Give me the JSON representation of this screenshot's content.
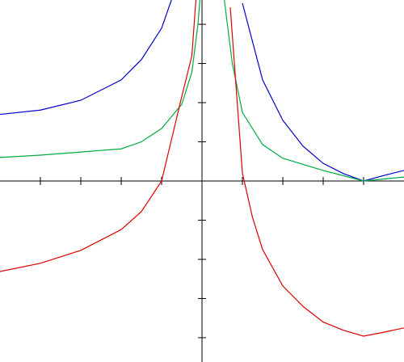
{
  "chart_data": {
    "type": "line",
    "xlim": [
      -5,
      5
    ],
    "ylim": [
      -4.62,
      4.62
    ],
    "xticks": [
      -4,
      -3,
      -2,
      -1,
      1,
      2,
      3,
      4
    ],
    "yticks": [
      -4,
      -3,
      -2,
      -1,
      1,
      2,
      3,
      4
    ],
    "series": [
      {
        "color": "#0000cc",
        "x": [
          -5,
          -4,
          -3,
          -2,
          -1.5,
          -1,
          -0.75,
          0,
          1,
          1.5,
          2,
          2.5,
          3,
          3.5,
          4,
          4.5,
          5
        ],
        "values": [
          1.7,
          1.81,
          2.06,
          2.58,
          3.1,
          3.9,
          4.64,
          null,
          4.54,
          2.58,
          1.55,
          0.89,
          0.45,
          0.19,
          0,
          0.14,
          0.27
        ]
      },
      {
        "color": "#00aa44",
        "x": [
          -5,
          -4,
          -3,
          -2,
          -1.5,
          -1,
          -0.5,
          -0.25,
          -0.1,
          -0.05,
          0,
          0.55,
          0.75,
          1,
          1.5,
          2,
          3,
          4,
          5
        ],
        "values": [
          0.6,
          0.66,
          0.74,
          0.82,
          1.0,
          1.34,
          1.96,
          2.78,
          4.0,
          4.64,
          null,
          4.64,
          3.0,
          1.75,
          0.93,
          0.58,
          0.27,
          0,
          0.1
        ]
      },
      {
        "color": "#e00000",
        "x": [
          -5,
          -4,
          -3,
          -2,
          -1.5,
          -1,
          -0.5,
          -0.25,
          -0.15,
          0,
          0.7,
          1,
          1.25,
          1.5,
          2,
          2.5,
          3,
          3.5,
          4,
          4.5,
          5
        ],
        "values": [
          -2.31,
          -2.1,
          -1.77,
          -1.24,
          -0.78,
          0,
          2.16,
          3.2,
          4.64,
          null,
          4.43,
          0.2,
          -0.93,
          -1.75,
          -2.68,
          -3.2,
          -3.6,
          -3.81,
          -3.96,
          -3.86,
          -3.75
        ]
      }
    ]
  }
}
